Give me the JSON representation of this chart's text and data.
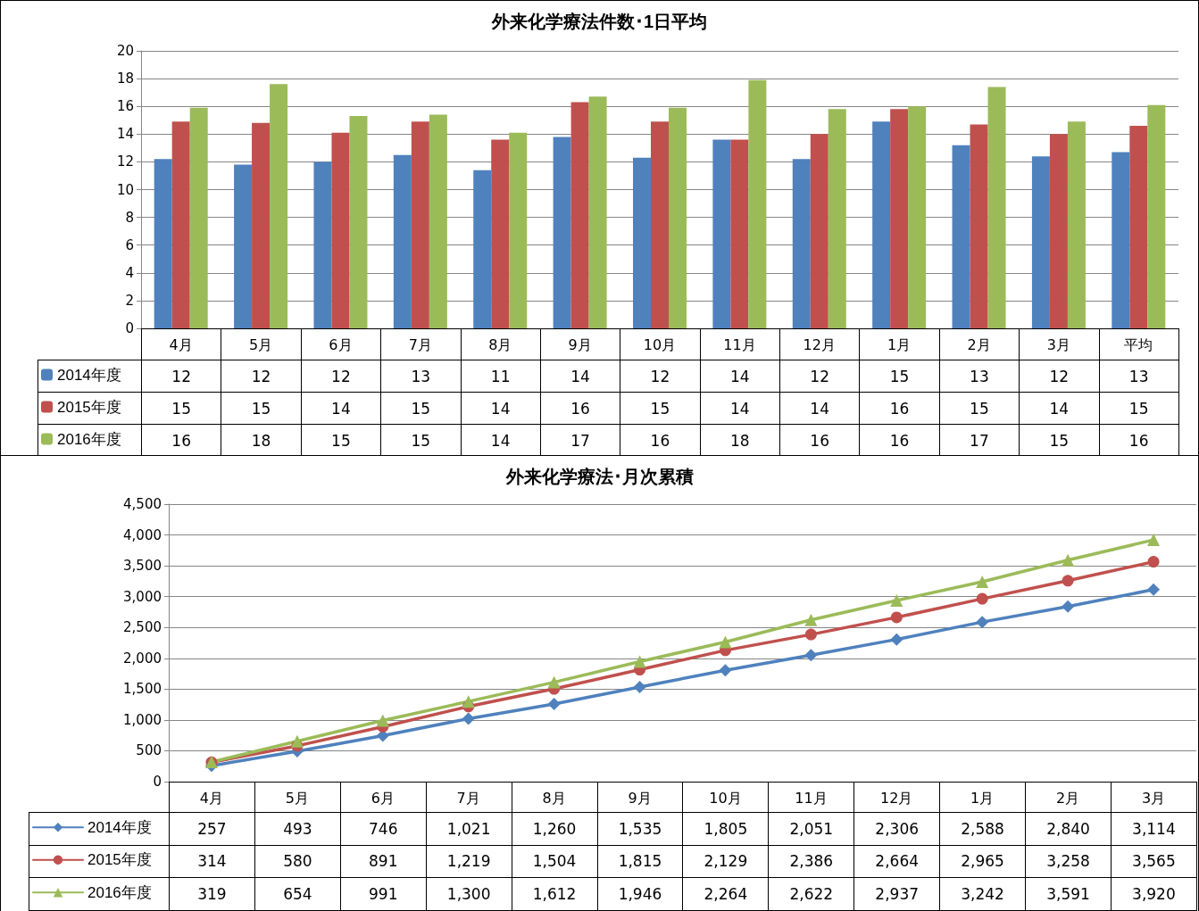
{
  "chart_data": [
    {
      "type": "bar",
      "title": "外来化学療法件数･1日平均",
      "categories": [
        "4月",
        "5月",
        "6月",
        "7月",
        "8月",
        "9月",
        "10月",
        "11月",
        "12月",
        "1月",
        "2月",
        "3月",
        "平均"
      ],
      "series": [
        {
          "name": "2014年度",
          "color": "#4f81bd",
          "values": [
            12.2,
            11.8,
            12.0,
            12.5,
            11.4,
            13.8,
            12.3,
            13.6,
            12.2,
            14.9,
            13.2,
            12.4,
            12.7
          ],
          "value_labels": [
            "12",
            "12",
            "12",
            "13",
            "11",
            "14",
            "12",
            "14",
            "12",
            "15",
            "13",
            "12",
            "13"
          ]
        },
        {
          "name": "2015年度",
          "color": "#c0504d",
          "values": [
            14.9,
            14.8,
            14.1,
            14.9,
            13.6,
            16.3,
            14.9,
            13.6,
            14.0,
            15.8,
            14.7,
            14.0,
            14.6
          ],
          "value_labels": [
            "15",
            "15",
            "14",
            "15",
            "14",
            "16",
            "15",
            "14",
            "14",
            "16",
            "15",
            "14",
            "15"
          ]
        },
        {
          "name": "2016年度",
          "color": "#9bbb59",
          "values": [
            15.9,
            17.6,
            15.3,
            15.4,
            14.1,
            16.7,
            15.9,
            17.9,
            15.8,
            16.0,
            17.4,
            14.9,
            16.1
          ],
          "value_labels": [
            "16",
            "18",
            "15",
            "15",
            "14",
            "17",
            "16",
            "18",
            "16",
            "16",
            "17",
            "15",
            "16"
          ]
        }
      ],
      "ylim": [
        0,
        20
      ],
      "yticks": [
        0,
        2,
        4,
        6,
        8,
        10,
        12,
        14,
        16,
        18,
        20
      ],
      "grid": "y",
      "legend": "bottom left"
    },
    {
      "type": "line",
      "title": "外来化学療法･月次累積",
      "categories": [
        "4月",
        "5月",
        "6月",
        "7月",
        "8月",
        "9月",
        "10月",
        "11月",
        "12月",
        "1月",
        "2月",
        "3月"
      ],
      "series": [
        {
          "name": "2014年度",
          "color": "#4f81bd",
          "marker": "diamond",
          "values": [
            257,
            493,
            746,
            1021,
            1260,
            1535,
            1805,
            2051,
            2306,
            2588,
            2840,
            3114
          ],
          "value_labels": [
            "257",
            "493",
            "746",
            "1,021",
            "1,260",
            "1,535",
            "1,805",
            "2,051",
            "2,306",
            "2,588",
            "2,840",
            "3,114"
          ]
        },
        {
          "name": "2015年度",
          "color": "#c0504d",
          "marker": "circle",
          "values": [
            314,
            580,
            891,
            1219,
            1504,
            1815,
            2129,
            2386,
            2664,
            2965,
            3258,
            3565
          ],
          "value_labels": [
            "314",
            "580",
            "891",
            "1,219",
            "1,504",
            "1,815",
            "2,129",
            "2,386",
            "2,664",
            "2,965",
            "3,258",
            "3,565"
          ]
        },
        {
          "name": "2016年度",
          "color": "#9bbb59",
          "marker": "triangle",
          "values": [
            319,
            654,
            991,
            1300,
            1612,
            1946,
            2264,
            2622,
            2937,
            3242,
            3591,
            3920
          ],
          "value_labels": [
            "319",
            "654",
            "991",
            "1,300",
            "1,612",
            "1,946",
            "2,264",
            "2,622",
            "2,937",
            "3,242",
            "3,591",
            "3,920"
          ]
        }
      ],
      "ylim": [
        0,
        4500
      ],
      "yticks": [
        0,
        500,
        {
          "value": 1000,
          "label": "1,000"
        },
        {
          "value": 1500,
          "label": "1,500"
        },
        {
          "value": 2000,
          "label": "2,000"
        },
        {
          "value": 2500,
          "label": "2,500"
        },
        {
          "value": 3000,
          "label": "3,000"
        },
        {
          "value": 3500,
          "label": "3,500"
        },
        {
          "value": 4000,
          "label": "4,000"
        },
        {
          "value": 4500,
          "label": "4,500"
        }
      ],
      "grid": "y",
      "legend": "bottom left",
      "line_style": "solid"
    }
  ]
}
